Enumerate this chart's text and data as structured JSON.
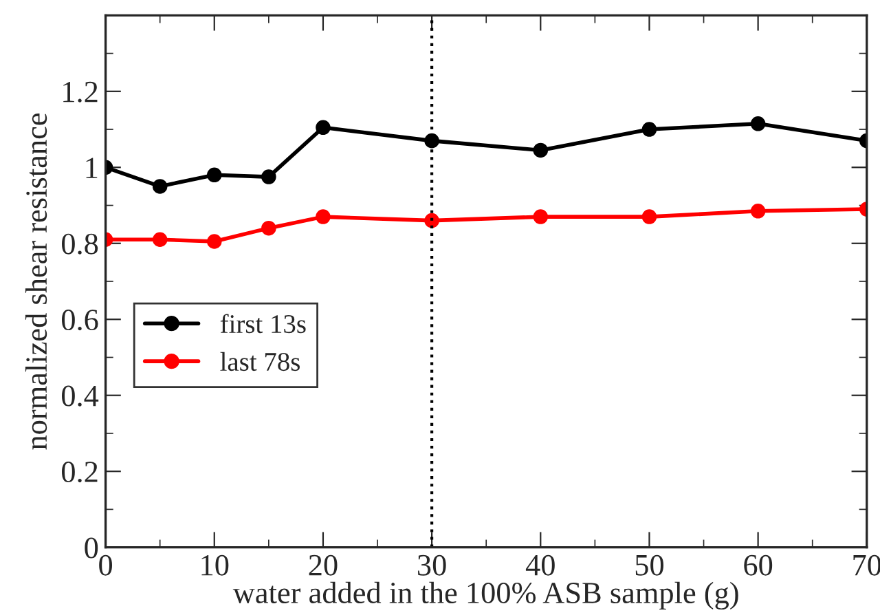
{
  "chart_data": {
    "type": "line",
    "xlabel": "water added in the 100% ASB sample (g)",
    "ylabel": "normalized shear resistance",
    "x": [
      0,
      5,
      10,
      15,
      20,
      30,
      40,
      50,
      60,
      70
    ],
    "series": [
      {
        "name": "first 13s",
        "color": "#000000",
        "values": [
          1.0,
          0.95,
          0.98,
          0.975,
          1.105,
          1.07,
          1.045,
          1.1,
          1.115,
          1.07
        ]
      },
      {
        "name": "last 78s",
        "color": "#ff0000",
        "values": [
          0.81,
          0.81,
          0.805,
          0.84,
          0.87,
          0.86,
          0.87,
          0.87,
          0.885,
          0.89
        ]
      }
    ],
    "xlim": [
      0,
      70
    ],
    "xticks": [
      0,
      10,
      20,
      30,
      40,
      50,
      60,
      70
    ],
    "ylim": [
      0,
      1.4
    ],
    "yticks": [
      0,
      0.2,
      0.4,
      0.6,
      0.8,
      1,
      1.2,
      {
        "value": 1.4,
        "label": null
      }
    ],
    "ref_lines": [
      {
        "axis": "x",
        "value": 30,
        "line_style": "dotted",
        "color": "#000000"
      }
    ],
    "marker": "circle",
    "line_style": "solid",
    "legend": "left",
    "grid": false
  }
}
